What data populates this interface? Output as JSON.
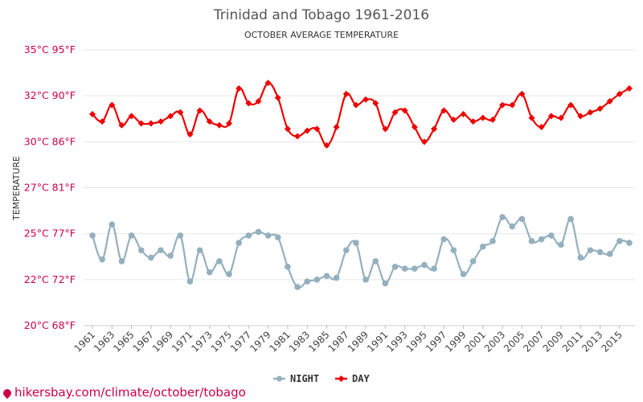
{
  "chart_data": {
    "type": "line",
    "title": "Trinidad and Tobago 1961-2016",
    "subtitle": "OCTOBER AVERAGE TEMPERATURE",
    "ylabel": "TEMPERATURE",
    "y_ticks": [
      {
        "value": 20,
        "label": "20°C 68°F"
      },
      {
        "value": 22.5,
        "label": "22°C 72°F"
      },
      {
        "value": 25,
        "label": "25°C 77°F"
      },
      {
        "value": 27.5,
        "label": "27°C 81°F"
      },
      {
        "value": 30,
        "label": "30°C 86°F"
      },
      {
        "value": 32.5,
        "label": "32°C 90°F"
      },
      {
        "value": 35,
        "label": "35°C 95°F"
      }
    ],
    "ylim": [
      20,
      35
    ],
    "x": [
      1961,
      1962,
      1963,
      1964,
      1965,
      1966,
      1967,
      1968,
      1969,
      1970,
      1971,
      1972,
      1973,
      1974,
      1975,
      1976,
      1977,
      1978,
      1979,
      1980,
      1981,
      1982,
      1983,
      1984,
      1985,
      1986,
      1987,
      1988,
      1989,
      1990,
      1991,
      1992,
      1993,
      1994,
      1995,
      1996,
      1997,
      1998,
      1999,
      2000,
      2001,
      2002,
      2003,
      2004,
      2005,
      2006,
      2007,
      2008,
      2009,
      2010,
      2011,
      2012,
      2013,
      2014,
      2015,
      2016
    ],
    "x_tick_labels": [
      "1961",
      "1963",
      "1965",
      "1967",
      "1969",
      "1971",
      "1973",
      "1975",
      "1977",
      "1979",
      "1981",
      "1983",
      "1985",
      "1987",
      "1989",
      "1991",
      "1993",
      "1995",
      "1997",
      "1999",
      "2001",
      "2003",
      "2005",
      "2007",
      "2009",
      "2011",
      "2013",
      "2015"
    ],
    "series": [
      {
        "name": "DAY",
        "color": "#ee0000",
        "marker": "diamond",
        "values": [
          31.5,
          31.1,
          32.0,
          30.9,
          31.4,
          31.0,
          31.0,
          31.1,
          31.4,
          31.6,
          30.4,
          31.7,
          31.1,
          30.9,
          31.0,
          32.9,
          32.1,
          32.2,
          33.2,
          32.4,
          30.7,
          30.3,
          30.6,
          30.7,
          29.8,
          30.8,
          32.6,
          32.0,
          32.3,
          32.1,
          30.7,
          31.6,
          31.7,
          30.8,
          30.0,
          30.7,
          31.7,
          31.2,
          31.5,
          31.1,
          31.3,
          31.2,
          32.0,
          32.0,
          32.6,
          31.3,
          30.8,
          31.4,
          31.3,
          32.0,
          31.4,
          31.6,
          31.8,
          32.2,
          32.6,
          32.9
        ]
      },
      {
        "name": "NIGHT",
        "color": "#94b0be",
        "marker": "circle",
        "values": [
          24.9,
          23.6,
          25.5,
          23.5,
          24.9,
          24.1,
          23.7,
          24.1,
          23.8,
          24.9,
          22.4,
          24.1,
          22.9,
          23.5,
          22.8,
          24.5,
          24.9,
          25.1,
          24.9,
          24.8,
          23.2,
          22.1,
          22.4,
          22.5,
          22.7,
          22.6,
          24.1,
          24.5,
          22.5,
          23.5,
          22.3,
          23.2,
          23.1,
          23.1,
          23.3,
          23.1,
          24.7,
          24.1,
          22.8,
          23.5,
          24.3,
          24.6,
          25.9,
          25.4,
          25.8,
          24.6,
          24.7,
          24.9,
          24.4,
          25.8,
          23.7,
          24.1,
          24.0,
          23.9,
          24.6,
          24.5
        ]
      }
    ],
    "legend_position": "bottom-center",
    "grid": true
  },
  "watermark": "hikersbay.com/climate/october/tobago"
}
